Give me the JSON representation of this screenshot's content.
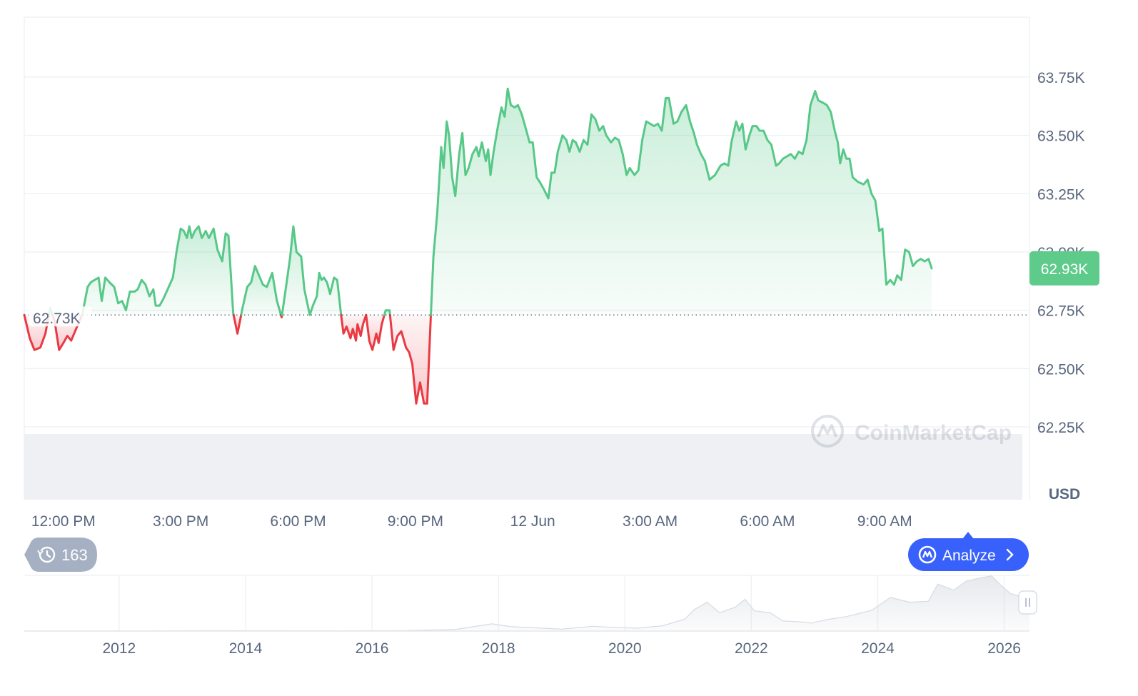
{
  "chart_data": {
    "type": "area",
    "currency": "USD",
    "y_ticks": [
      {
        "value": 62250,
        "label": "62.25K"
      },
      {
        "value": 62500,
        "label": "62.50K"
      },
      {
        "value": 62750,
        "label": "62.75K"
      },
      {
        "value": 63000,
        "label": "63.00K"
      },
      {
        "value": 63250,
        "label": "63.25K"
      },
      {
        "value": 63500,
        "label": "63.50K"
      },
      {
        "value": 63750,
        "label": "63.75K"
      }
    ],
    "x_ticks": [
      {
        "hour": 0,
        "label": "12:00 PM"
      },
      {
        "hour": 3,
        "label": "3:00 PM"
      },
      {
        "hour": 6,
        "label": "6:00 PM"
      },
      {
        "hour": 9,
        "label": "9:00 PM"
      },
      {
        "hour": 12,
        "label": "12 Jun"
      },
      {
        "hour": 15,
        "label": "3:00 AM"
      },
      {
        "hour": 18,
        "label": "6:00 AM"
      },
      {
        "hour": 21,
        "label": "9:00 AM"
      }
    ],
    "ylim": [
      62000,
      64000
    ],
    "xlim": [
      -1,
      24.7
    ],
    "baseline": {
      "value": 62730,
      "label": "62.73K"
    },
    "current": {
      "value": 62930,
      "label": "62.93K"
    },
    "series": [
      {
        "values": [
          [
            -1.0,
            62730
          ],
          [
            -0.86,
            62630
          ],
          [
            -0.74,
            62580
          ],
          [
            -0.59,
            62590
          ],
          [
            -0.46,
            62650
          ],
          [
            -0.34,
            62760
          ],
          [
            -0.22,
            62700
          ],
          [
            -0.11,
            62580
          ],
          [
            0.0,
            62610
          ],
          [
            0.1,
            62640
          ],
          [
            0.2,
            62620
          ],
          [
            0.3,
            62660
          ],
          [
            0.4,
            62700
          ],
          [
            0.48,
            62730
          ],
          [
            0.62,
            62850
          ],
          [
            0.7,
            62870
          ],
          [
            0.8,
            62880
          ],
          [
            0.9,
            62890
          ],
          [
            0.98,
            62790
          ],
          [
            1.07,
            62890
          ],
          [
            1.18,
            62870
          ],
          [
            1.3,
            62850
          ],
          [
            1.4,
            62780
          ],
          [
            1.5,
            62790
          ],
          [
            1.6,
            62750
          ],
          [
            1.7,
            62830
          ],
          [
            1.82,
            62830
          ],
          [
            1.9,
            62840
          ],
          [
            2.0,
            62880
          ],
          [
            2.1,
            62860
          ],
          [
            2.2,
            62810
          ],
          [
            2.3,
            62840
          ],
          [
            2.36,
            62770
          ],
          [
            2.46,
            62770
          ],
          [
            2.56,
            62800
          ],
          [
            2.64,
            62830
          ],
          [
            2.8,
            62890
          ],
          [
            2.9,
            63010
          ],
          [
            3.0,
            63100
          ],
          [
            3.08,
            63090
          ],
          [
            3.16,
            63060
          ],
          [
            3.22,
            63110
          ],
          [
            3.28,
            63060
          ],
          [
            3.36,
            63090
          ],
          [
            3.46,
            63110
          ],
          [
            3.54,
            63060
          ],
          [
            3.64,
            63090
          ],
          [
            3.72,
            63060
          ],
          [
            3.84,
            63100
          ],
          [
            3.94,
            63010
          ],
          [
            4.06,
            62960
          ],
          [
            4.15,
            63080
          ],
          [
            4.22,
            63070
          ],
          [
            4.34,
            62740
          ],
          [
            4.45,
            62650
          ],
          [
            4.58,
            62760
          ],
          [
            4.7,
            62850
          ],
          [
            4.8,
            62870
          ],
          [
            4.9,
            62940
          ],
          [
            5.0,
            62900
          ],
          [
            5.1,
            62860
          ],
          [
            5.2,
            62850
          ],
          [
            5.34,
            62910
          ],
          [
            5.46,
            62790
          ],
          [
            5.58,
            62720
          ],
          [
            5.7,
            62860
          ],
          [
            5.8,
            62980
          ],
          [
            5.88,
            63110
          ],
          [
            5.96,
            63000
          ],
          [
            6.08,
            62980
          ],
          [
            6.16,
            62840
          ],
          [
            6.3,
            62730
          ],
          [
            6.38,
            62770
          ],
          [
            6.48,
            62810
          ],
          [
            6.54,
            62910
          ],
          [
            6.6,
            62880
          ],
          [
            6.66,
            62890
          ],
          [
            6.74,
            62870
          ],
          [
            6.82,
            62820
          ],
          [
            6.92,
            62890
          ],
          [
            7.0,
            62880
          ],
          [
            7.1,
            62730
          ],
          [
            7.16,
            62650
          ],
          [
            7.24,
            62680
          ],
          [
            7.34,
            62630
          ],
          [
            7.4,
            62670
          ],
          [
            7.48,
            62620
          ],
          [
            7.52,
            62690
          ],
          [
            7.6,
            62640
          ],
          [
            7.66,
            62690
          ],
          [
            7.74,
            62730
          ],
          [
            7.82,
            62620
          ],
          [
            7.9,
            62580
          ],
          [
            7.96,
            62620
          ],
          [
            8.0,
            62650
          ],
          [
            8.06,
            62610
          ],
          [
            8.14,
            62690
          ],
          [
            8.24,
            62750
          ],
          [
            8.34,
            62750
          ],
          [
            8.44,
            62580
          ],
          [
            8.54,
            62640
          ],
          [
            8.64,
            62660
          ],
          [
            8.76,
            62590
          ],
          [
            8.84,
            62570
          ],
          [
            8.92,
            62520
          ],
          [
            9.02,
            62350
          ],
          [
            9.12,
            62440
          ],
          [
            9.22,
            62350
          ],
          [
            9.3,
            62350
          ],
          [
            9.4,
            62750
          ],
          [
            9.46,
            62980
          ],
          [
            9.56,
            63170
          ],
          [
            9.66,
            63450
          ],
          [
            9.72,
            63360
          ],
          [
            9.8,
            63560
          ],
          [
            9.86,
            63500
          ],
          [
            9.94,
            63320
          ],
          [
            10.02,
            63240
          ],
          [
            10.12,
            63420
          ],
          [
            10.2,
            63510
          ],
          [
            10.28,
            63330
          ],
          [
            10.36,
            63360
          ],
          [
            10.46,
            63420
          ],
          [
            10.56,
            63450
          ],
          [
            10.62,
            63410
          ],
          [
            10.7,
            63470
          ],
          [
            10.8,
            63390
          ],
          [
            10.86,
            63440
          ],
          [
            10.92,
            63330
          ],
          [
            11.0,
            63430
          ],
          [
            11.1,
            63530
          ],
          [
            11.2,
            63620
          ],
          [
            11.28,
            63580
          ],
          [
            11.36,
            63700
          ],
          [
            11.44,
            63630
          ],
          [
            11.54,
            63620
          ],
          [
            11.62,
            63630
          ],
          [
            11.72,
            63590
          ],
          [
            11.82,
            63530
          ],
          [
            11.92,
            63470
          ],
          [
            12.0,
            63470
          ],
          [
            12.1,
            63320
          ],
          [
            12.18,
            63300
          ],
          [
            12.28,
            63270
          ],
          [
            12.4,
            63230
          ],
          [
            12.48,
            63340
          ],
          [
            12.56,
            63340
          ],
          [
            12.64,
            63430
          ],
          [
            12.76,
            63500
          ],
          [
            12.86,
            63480
          ],
          [
            12.94,
            63430
          ],
          [
            13.02,
            63480
          ],
          [
            13.1,
            63470
          ],
          [
            13.2,
            63430
          ],
          [
            13.3,
            63480
          ],
          [
            13.4,
            63460
          ],
          [
            13.5,
            63590
          ],
          [
            13.6,
            63570
          ],
          [
            13.7,
            63520
          ],
          [
            13.8,
            63540
          ],
          [
            13.88,
            63500
          ],
          [
            14.0,
            63470
          ],
          [
            14.1,
            63490
          ],
          [
            14.2,
            63480
          ],
          [
            14.3,
            63420
          ],
          [
            14.4,
            63330
          ],
          [
            14.48,
            63360
          ],
          [
            14.6,
            63330
          ],
          [
            14.7,
            63350
          ],
          [
            14.8,
            63480
          ],
          [
            14.9,
            63560
          ],
          [
            15.0,
            63550
          ],
          [
            15.1,
            63540
          ],
          [
            15.2,
            63550
          ],
          [
            15.3,
            63520
          ],
          [
            15.4,
            63660
          ],
          [
            15.48,
            63660
          ],
          [
            15.6,
            63550
          ],
          [
            15.7,
            63560
          ],
          [
            15.8,
            63600
          ],
          [
            15.92,
            63630
          ],
          [
            16.02,
            63560
          ],
          [
            16.12,
            63510
          ],
          [
            16.2,
            63460
          ],
          [
            16.3,
            63420
          ],
          [
            16.4,
            63390
          ],
          [
            16.52,
            63310
          ],
          [
            16.66,
            63330
          ],
          [
            16.8,
            63370
          ],
          [
            16.9,
            63380
          ],
          [
            17.0,
            63370
          ],
          [
            17.08,
            63470
          ],
          [
            17.2,
            63560
          ],
          [
            17.28,
            63520
          ],
          [
            17.36,
            63550
          ],
          [
            17.44,
            63440
          ],
          [
            17.54,
            63500
          ],
          [
            17.62,
            63540
          ],
          [
            17.72,
            63540
          ],
          [
            17.8,
            63520
          ],
          [
            17.9,
            63520
          ],
          [
            18.0,
            63480
          ],
          [
            18.1,
            63460
          ],
          [
            18.22,
            63370
          ],
          [
            18.3,
            63380
          ],
          [
            18.4,
            63400
          ],
          [
            18.5,
            63410
          ],
          [
            18.6,
            63420
          ],
          [
            18.7,
            63400
          ],
          [
            18.8,
            63430
          ],
          [
            18.9,
            63420
          ],
          [
            19.0,
            63480
          ],
          [
            19.1,
            63630
          ],
          [
            19.22,
            63690
          ],
          [
            19.3,
            63650
          ],
          [
            19.42,
            63640
          ],
          [
            19.52,
            63630
          ],
          [
            19.62,
            63600
          ],
          [
            19.72,
            63520
          ],
          [
            19.8,
            63470
          ],
          [
            19.86,
            63380
          ],
          [
            19.94,
            63440
          ],
          [
            20.02,
            63400
          ],
          [
            20.1,
            63400
          ],
          [
            20.18,
            63320
          ],
          [
            20.32,
            63300
          ],
          [
            20.46,
            63290
          ],
          [
            20.56,
            63310
          ],
          [
            20.66,
            63250
          ],
          [
            20.76,
            63220
          ],
          [
            20.86,
            63090
          ],
          [
            20.94,
            63100
          ],
          [
            21.04,
            62860
          ],
          [
            21.14,
            62880
          ],
          [
            21.24,
            62860
          ],
          [
            21.32,
            62900
          ],
          [
            21.42,
            62880
          ],
          [
            21.52,
            63010
          ],
          [
            21.62,
            63000
          ],
          [
            21.72,
            62940
          ],
          [
            21.82,
            62960
          ],
          [
            21.92,
            62970
          ],
          [
            22.02,
            62960
          ],
          [
            22.12,
            62970
          ],
          [
            22.2,
            62930
          ]
        ]
      }
    ],
    "navigator": {
      "x_ticks": [
        {
          "year": 2012,
          "label": "2012"
        },
        {
          "year": 2014,
          "label": "2014"
        },
        {
          "year": 2016,
          "label": "2016"
        },
        {
          "year": 2018,
          "label": "2018"
        },
        {
          "year": 2020,
          "label": "2020"
        },
        {
          "year": 2022,
          "label": "2022"
        },
        {
          "year": 2024,
          "label": "2024"
        },
        {
          "year": 2026,
          "label": "2026"
        }
      ],
      "xlim": [
        2010.5,
        2026.4
      ],
      "ylim": [
        0,
        110000
      ],
      "values": [
        [
          2010.5,
          0
        ],
        [
          2011.5,
          10
        ],
        [
          2012.5,
          12
        ],
        [
          2013.5,
          800
        ],
        [
          2014.5,
          500
        ],
        [
          2015.5,
          300
        ],
        [
          2016.5,
          800
        ],
        [
          2017.3,
          3000
        ],
        [
          2017.9,
          15000
        ],
        [
          2018.2,
          9000
        ],
        [
          2018.6,
          6500
        ],
        [
          2019.0,
          3800
        ],
        [
          2019.5,
          10000
        ],
        [
          2019.9,
          7200
        ],
        [
          2020.2,
          6000
        ],
        [
          2020.6,
          11000
        ],
        [
          2020.95,
          25000
        ],
        [
          2021.1,
          45000
        ],
        [
          2021.3,
          60000
        ],
        [
          2021.5,
          38000
        ],
        [
          2021.75,
          50000
        ],
        [
          2021.9,
          66000
        ],
        [
          2022.05,
          42000
        ],
        [
          2022.3,
          38000
        ],
        [
          2022.5,
          21000
        ],
        [
          2022.8,
          19000
        ],
        [
          2022.95,
          16500
        ],
        [
          2023.2,
          24000
        ],
        [
          2023.5,
          30000
        ],
        [
          2023.9,
          43000
        ],
        [
          2024.2,
          70000
        ],
        [
          2024.5,
          60000
        ],
        [
          2024.8,
          62000
        ],
        [
          2024.95,
          98000
        ],
        [
          2025.2,
          85000
        ],
        [
          2025.4,
          104000
        ],
        [
          2025.6,
          110000
        ],
        [
          2025.8,
          115000
        ],
        [
          2025.95,
          95000
        ],
        [
          2026.1,
          78000
        ],
        [
          2026.3,
          70000
        ],
        [
          2026.4,
          68000
        ]
      ]
    }
  },
  "watermark": {
    "text": "CoinMarketCap"
  },
  "currency_label": "USD",
  "history_badge": {
    "count": "163",
    "icon": "history-icon"
  },
  "analyze_button": {
    "label": "Analyze",
    "icon": "analyze-logo-icon",
    "chevron": "chevron-right-icon",
    "color": "#3861fb"
  },
  "colors": {
    "up": "#57c888",
    "down": "#ea3943",
    "grid": "#eff2f5",
    "text": "#58667e",
    "current_bg": "#5fcb8b"
  }
}
